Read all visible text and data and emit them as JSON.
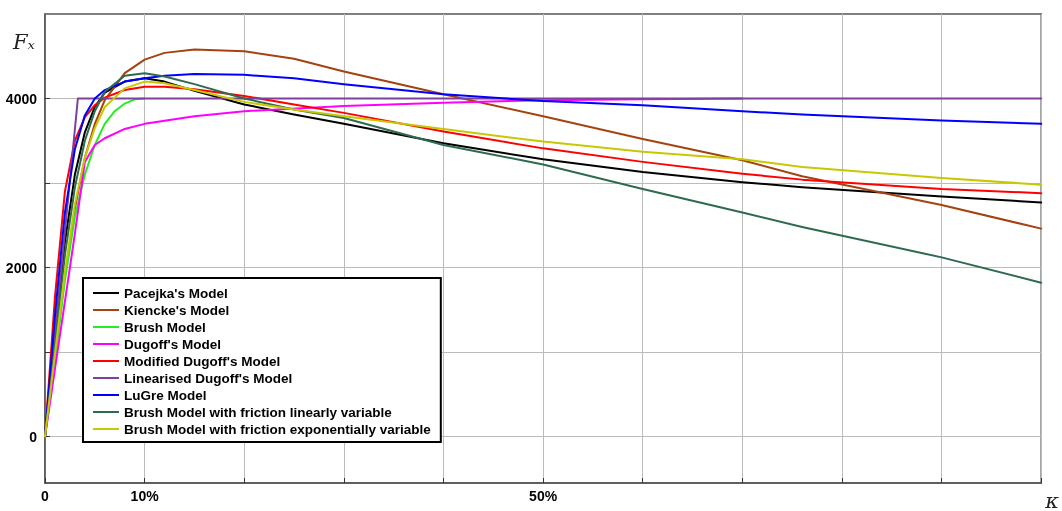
{
  "chart_data": {
    "type": "line",
    "ylabel": "Fₓ",
    "xlabel": "κ",
    "xlim": [
      0,
      100
    ],
    "xticks": [
      {
        "value": 0,
        "label": "0"
      },
      {
        "value": 10,
        "label": "10%"
      },
      {
        "value": 20,
        "label": null
      },
      {
        "value": 30,
        "label": null
      },
      {
        "value": 40,
        "label": null
      },
      {
        "value": 50,
        "label": "50%"
      },
      {
        "value": 60,
        "label": null
      },
      {
        "value": 70,
        "label": null
      },
      {
        "value": 80,
        "label": null
      },
      {
        "value": 90,
        "label": null
      },
      {
        "value": 100,
        "label": null
      }
    ],
    "ylim": [
      -550,
      5000
    ],
    "yticks": [
      0,
      {
        "value": 1000,
        "label": null
      },
      2000,
      {
        "value": 3000,
        "label": null
      },
      4000
    ],
    "grid": true,
    "legend": "bottom left",
    "marker": "none",
    "line_style": "solid",
    "series": [
      {
        "name": "Pacejka's Model",
        "color": "#000000",
        "x": [
          0,
          1,
          2,
          3,
          4,
          5,
          6,
          8,
          10,
          12,
          15,
          20,
          25,
          30,
          40,
          50,
          60,
          70,
          76,
          90,
          100
        ],
        "values": [
          0,
          1200,
          2300,
          3100,
          3600,
          3900,
          4070,
          4200,
          4240,
          4200,
          4090,
          3930,
          3810,
          3700,
          3470,
          3280,
          3130,
          3010,
          2950,
          2840,
          2770
        ]
      },
      {
        "name": "Kiencke's Model",
        "color": "#a5420f",
        "x": [
          0,
          1,
          2,
          3,
          4,
          5,
          6,
          8,
          10,
          12,
          15,
          20,
          25,
          30,
          40,
          50,
          60,
          70,
          76,
          90,
          100
        ],
        "values": [
          0,
          950,
          1900,
          2700,
          3300,
          3700,
          3980,
          4300,
          4460,
          4540,
          4580,
          4560,
          4470,
          4320,
          4050,
          3790,
          3520,
          3270,
          3080,
          2740,
          2460
        ]
      },
      {
        "name": "Brush Model",
        "color": "#22ee22",
        "x": [
          0,
          1,
          2,
          3,
          4,
          5,
          6,
          7,
          8,
          9,
          10
        ],
        "values": [
          0,
          900,
          1850,
          2600,
          3100,
          3450,
          3700,
          3850,
          3940,
          3990,
          4000
        ]
      },
      {
        "name": "Dugoff's Model",
        "color": "#ff00ff",
        "x": [
          0,
          1,
          2,
          3,
          4,
          5,
          6,
          8,
          10,
          15,
          20,
          30,
          40,
          50,
          60,
          70
        ],
        "values": [
          0,
          800,
          1600,
          2400,
          3250,
          3450,
          3530,
          3640,
          3700,
          3790,
          3850,
          3910,
          3950,
          3980,
          3990,
          4000
        ]
      },
      {
        "name": "Modified Dugoff's Model",
        "color": "#ff0000",
        "x": [
          0,
          1,
          2,
          3,
          4,
          5,
          6,
          8,
          10,
          12,
          15,
          20,
          25,
          30,
          40,
          50,
          60,
          70,
          76,
          90,
          100
        ],
        "values": [
          0,
          1650,
          2900,
          3500,
          3780,
          3920,
          4010,
          4100,
          4140,
          4140,
          4110,
          4030,
          3930,
          3830,
          3610,
          3410,
          3250,
          3110,
          3040,
          2930,
          2880
        ]
      },
      {
        "name": "Linearised Dugoff's Model",
        "color": "#7f3f9f",
        "x": [
          0,
          3.3,
          100
        ],
        "values": [
          0,
          4000,
          4000
        ]
      },
      {
        "name": "LuGre Model",
        "color": "#0000ff",
        "x": [
          0,
          1,
          2,
          3,
          4,
          5,
          6,
          8,
          10,
          12,
          15,
          20,
          25,
          30,
          40,
          50,
          60,
          70,
          76,
          90,
          100
        ],
        "values": [
          0,
          1430,
          2650,
          3400,
          3800,
          4000,
          4100,
          4200,
          4240,
          4270,
          4290,
          4280,
          4240,
          4170,
          4050,
          3970,
          3920,
          3850,
          3810,
          3740,
          3700
        ]
      },
      {
        "name": "Brush Model with friction linearly variable",
        "color": "#2e6b4e",
        "x": [
          0,
          1,
          2,
          3,
          4,
          5,
          6,
          8,
          10,
          12,
          15,
          20,
          25,
          30,
          40,
          50,
          60,
          70,
          76,
          90,
          100
        ],
        "values": [
          0,
          1080,
          2150,
          2950,
          3500,
          3850,
          4080,
          4270,
          4300,
          4260,
          4170,
          4000,
          3870,
          3770,
          3450,
          3220,
          2930,
          2650,
          2480,
          2120,
          1820
        ]
      },
      {
        "name": "Brush Model with friction exponentially variable",
        "color": "#c8c800",
        "x": [
          0,
          1,
          2,
          3,
          4,
          5,
          6,
          8,
          10,
          12,
          15,
          20,
          25,
          30,
          40,
          50,
          60,
          70,
          76,
          90,
          100
        ],
        "values": [
          0,
          980,
          1950,
          2750,
          3300,
          3650,
          3900,
          4120,
          4200,
          4180,
          4100,
          3960,
          3870,
          3790,
          3640,
          3490,
          3370,
          3280,
          3190,
          3060,
          2980
        ]
      }
    ]
  }
}
